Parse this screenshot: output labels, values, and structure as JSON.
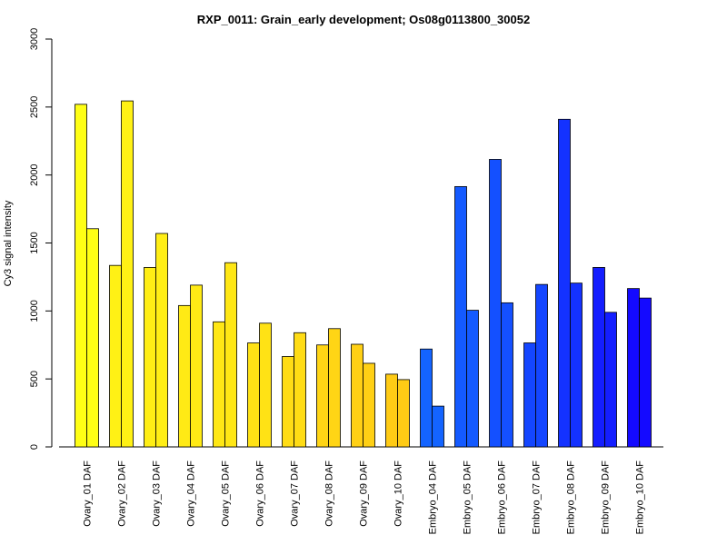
{
  "chart_data": {
    "type": "bar",
    "title": "RXP_0011: Grain_early development; Os08g0113800_30052",
    "xlabel": "",
    "ylabel": "Cy3 signal intensity",
    "ylim": [
      0,
      3000
    ],
    "yticks": [
      0,
      500,
      1000,
      1500,
      2000,
      2500,
      3000
    ],
    "categories": [
      "Ovary_01 DAF",
      "Ovary_02 DAF",
      "Ovary_03 DAF",
      "Ovary_04 DAF",
      "Ovary_05 DAF",
      "Ovary_06 DAF",
      "Ovary_07 DAF",
      "Ovary_08 DAF",
      "Ovary_09 DAF",
      "Ovary_10 DAF",
      "Embryo_04 DAF",
      "Embryo_05 DAF",
      "Embryo_06 DAF",
      "Embryo_07 DAF",
      "Embryo_08 DAF",
      "Embryo_09 DAF",
      "Embryo_10 DAF"
    ],
    "series": [
      {
        "values": [
          2520,
          1335,
          1320,
          1040,
          920,
          765,
          665,
          750,
          755,
          535,
          720,
          1915,
          2115,
          765,
          2410,
          1320,
          1165
        ]
      },
      {
        "values": [
          1605,
          2545,
          1570,
          1190,
          1355,
          910,
          840,
          870,
          615,
          495,
          300,
          1005,
          1060,
          1195,
          1205,
          990,
          1095
        ]
      }
    ],
    "colors": [
      "#FFFF15",
      "#FFF115",
      "#FFEE15",
      "#FFEA15",
      "#FFE715",
      "#FFE215",
      "#FFDC15",
      "#FFD515",
      "#FFD015",
      "#FFCB15",
      "#1464FF",
      "#145AFF",
      "#1450FF",
      "#1446FF",
      "#1432FF",
      "#141EFF",
      "#140AFF"
    ],
    "grid": false,
    "legend": "none"
  }
}
